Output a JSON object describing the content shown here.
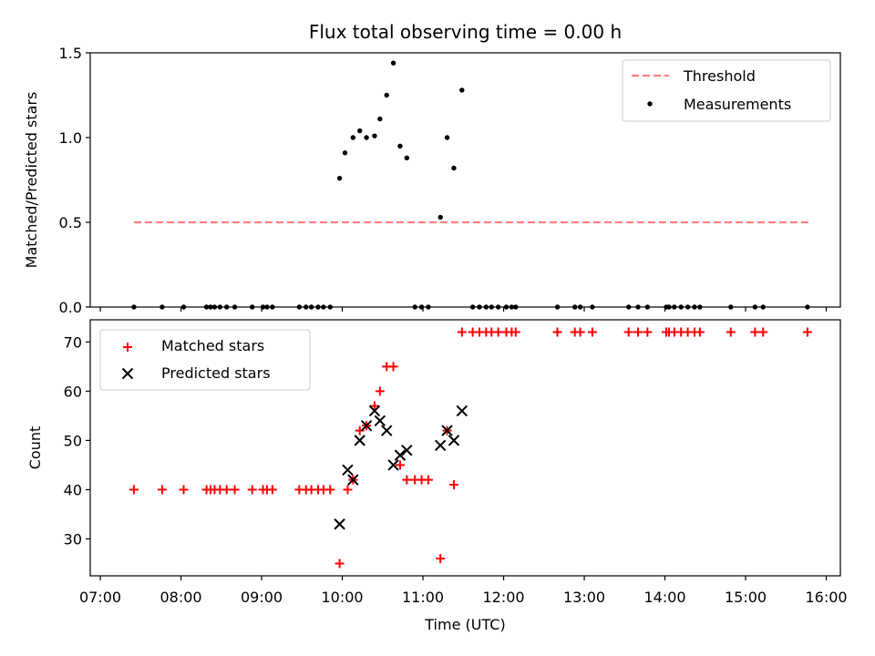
{
  "chart_data": [
    {
      "type": "scatter",
      "title": "Flux total observing time = 0.00 h",
      "xlabel": "",
      "ylabel": "Matched/Predicted stars",
      "ylim": [
        0,
        1.5
      ],
      "yticks": [
        "0.0",
        "0.5",
        "1.0",
        "1.5"
      ],
      "threshold": {
        "name": "Threshold",
        "value": 0.5,
        "x_range": [
          "07:25",
          "15:47"
        ],
        "color": "#ff7f7f"
      },
      "series": [
        {
          "name": "Measurements",
          "color": "#000000",
          "points": [
            [
              "07:25",
              0
            ],
            [
              "07:46",
              0
            ],
            [
              "08:02",
              0
            ],
            [
              "08:19",
              0
            ],
            [
              "08:22",
              0
            ],
            [
              "08:25",
              0
            ],
            [
              "08:29",
              0
            ],
            [
              "08:34",
              0
            ],
            [
              "08:40",
              0
            ],
            [
              "08:53",
              0
            ],
            [
              "09:01",
              0
            ],
            [
              "09:04",
              0
            ],
            [
              "09:08",
              0
            ],
            [
              "09:28",
              0
            ],
            [
              "09:33",
              0
            ],
            [
              "09:37",
              0
            ],
            [
              "09:42",
              0
            ],
            [
              "09:46",
              0
            ],
            [
              "09:51",
              0
            ],
            [
              "09:58",
              0.76
            ],
            [
              "10:02",
              0.91
            ],
            [
              "10:08",
              1.0
            ],
            [
              "10:13",
              1.04
            ],
            [
              "10:18",
              1.0
            ],
            [
              "10:24",
              1.01
            ],
            [
              "10:28",
              1.11
            ],
            [
              "10:33",
              1.25
            ],
            [
              "10:38",
              1.44
            ],
            [
              "10:43",
              0.95
            ],
            [
              "10:48",
              0.88
            ],
            [
              "10:54",
              0
            ],
            [
              "10:59",
              0
            ],
            [
              "11:04",
              0
            ],
            [
              "11:13",
              0.53
            ],
            [
              "11:18",
              1.0
            ],
            [
              "11:23",
              0.82
            ],
            [
              "11:29",
              1.28
            ],
            [
              "11:37",
              0
            ],
            [
              "11:42",
              0
            ],
            [
              "11:47",
              0
            ],
            [
              "11:51",
              0
            ],
            [
              "11:56",
              0
            ],
            [
              "12:02",
              0
            ],
            [
              "12:06",
              0
            ],
            [
              "12:09",
              0
            ],
            [
              "12:40",
              0
            ],
            [
              "12:53",
              0
            ],
            [
              "12:57",
              0
            ],
            [
              "13:06",
              0
            ],
            [
              "13:33",
              0
            ],
            [
              "13:40",
              0
            ],
            [
              "13:47",
              0
            ],
            [
              "14:01",
              0
            ],
            [
              "14:03",
              0
            ],
            [
              "14:07",
              0
            ],
            [
              "14:12",
              0
            ],
            [
              "14:17",
              0
            ],
            [
              "14:22",
              0
            ],
            [
              "14:26",
              0
            ],
            [
              "14:49",
              0
            ],
            [
              "15:07",
              0
            ],
            [
              "15:13",
              0
            ],
            [
              "15:46",
              0
            ]
          ]
        }
      ],
      "legend": "top-right"
    },
    {
      "type": "scatter",
      "xlabel": "Time (UTC)",
      "ylabel": "Count",
      "ylim": [
        22.5,
        74.5
      ],
      "yticks": [
        "30",
        "40",
        "50",
        "60",
        "70"
      ],
      "xticks": [
        "07:00",
        "08:00",
        "09:00",
        "10:00",
        "11:00",
        "12:00",
        "13:00",
        "14:00",
        "15:00",
        "16:00"
      ],
      "series": [
        {
          "name": "Matched stars",
          "marker": "plus",
          "color": "#ff0000",
          "points": [
            [
              "07:25",
              40
            ],
            [
              "07:46",
              40
            ],
            [
              "08:02",
              40
            ],
            [
              "08:19",
              40
            ],
            [
              "08:22",
              40
            ],
            [
              "08:25",
              40
            ],
            [
              "08:29",
              40
            ],
            [
              "08:34",
              40
            ],
            [
              "08:40",
              40
            ],
            [
              "08:53",
              40
            ],
            [
              "09:01",
              40
            ],
            [
              "09:04",
              40
            ],
            [
              "09:08",
              40
            ],
            [
              "09:28",
              40
            ],
            [
              "09:33",
              40
            ],
            [
              "09:37",
              40
            ],
            [
              "09:42",
              40
            ],
            [
              "09:46",
              40
            ],
            [
              "09:51",
              40
            ],
            [
              "09:58",
              25
            ],
            [
              "10:04",
              40
            ],
            [
              "10:08",
              42
            ],
            [
              "10:13",
              52
            ],
            [
              "10:18",
              53
            ],
            [
              "10:24",
              57
            ],
            [
              "10:28",
              60
            ],
            [
              "10:33",
              65
            ],
            [
              "10:38",
              65
            ],
            [
              "10:43",
              45
            ],
            [
              "10:48",
              42
            ],
            [
              "10:54",
              42
            ],
            [
              "10:59",
              42
            ],
            [
              "11:04",
              42
            ],
            [
              "11:13",
              26
            ],
            [
              "11:18",
              52
            ],
            [
              "11:23",
              41
            ],
            [
              "11:29",
              72
            ],
            [
              "11:37",
              72
            ],
            [
              "11:42",
              72
            ],
            [
              "11:47",
              72
            ],
            [
              "11:51",
              72
            ],
            [
              "11:56",
              72
            ],
            [
              "12:02",
              72
            ],
            [
              "12:06",
              72
            ],
            [
              "12:09",
              72
            ],
            [
              "12:40",
              72
            ],
            [
              "12:53",
              72
            ],
            [
              "12:57",
              72
            ],
            [
              "13:06",
              72
            ],
            [
              "13:33",
              72
            ],
            [
              "13:40",
              72
            ],
            [
              "13:47",
              72
            ],
            [
              "14:01",
              72
            ],
            [
              "14:03",
              72
            ],
            [
              "14:07",
              72
            ],
            [
              "14:12",
              72
            ],
            [
              "14:17",
              72
            ],
            [
              "14:22",
              72
            ],
            [
              "14:26",
              72
            ],
            [
              "14:49",
              72
            ],
            [
              "15:07",
              72
            ],
            [
              "15:13",
              72
            ],
            [
              "15:46",
              72
            ]
          ]
        },
        {
          "name": "Predicted stars",
          "marker": "x",
          "color": "#000000",
          "points": [
            [
              "09:58",
              33
            ],
            [
              "10:04",
              44
            ],
            [
              "10:08",
              42
            ],
            [
              "10:13",
              50
            ],
            [
              "10:18",
              53
            ],
            [
              "10:24",
              56
            ],
            [
              "10:28",
              54
            ],
            [
              "10:33",
              52
            ],
            [
              "10:38",
              45
            ],
            [
              "10:43",
              47
            ],
            [
              "10:48",
              48
            ],
            [
              "11:13",
              49
            ],
            [
              "11:18",
              52
            ],
            [
              "11:23",
              50
            ],
            [
              "11:29",
              56
            ]
          ]
        }
      ],
      "legend": "top-left"
    }
  ]
}
